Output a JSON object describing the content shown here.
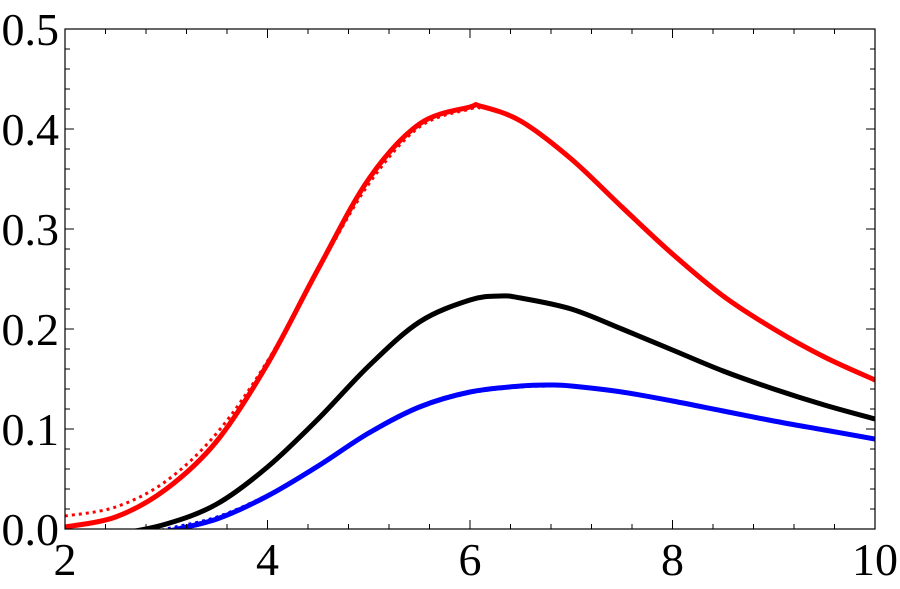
{
  "chart_data": {
    "type": "line",
    "title": "",
    "xlabel": "",
    "ylabel": "",
    "xlim": [
      2,
      10
    ],
    "ylim": [
      0,
      0.5
    ],
    "x_ticks": [
      2,
      4,
      6,
      8,
      10
    ],
    "y_ticks": [
      0.0,
      0.1,
      0.2,
      0.3,
      0.4,
      0.5
    ],
    "x_tick_labels": [
      "2",
      "4",
      "6",
      "8",
      "10"
    ],
    "y_tick_labels": [
      "0.0",
      "0.1",
      "0.2",
      "0.3",
      "0.4",
      "0.5"
    ],
    "grid": false,
    "legend": "none",
    "series": [
      {
        "color": "#ff0000",
        "style": "solid",
        "x": [
          2.0,
          2.5,
          3.0,
          3.5,
          4.0,
          4.5,
          5.0,
          5.5,
          6.0,
          6.1,
          6.5,
          7.0,
          7.5,
          8.0,
          8.5,
          9.0,
          9.5,
          10.0
        ],
        "y": [
          0.002,
          0.012,
          0.04,
          0.088,
          0.165,
          0.26,
          0.35,
          0.405,
          0.422,
          0.423,
          0.408,
          0.37,
          0.322,
          0.275,
          0.233,
          0.2,
          0.172,
          0.149
        ]
      },
      {
        "color": "#ff0000",
        "style": "dotted",
        "x": [
          2.0,
          2.5,
          3.0,
          3.5,
          4.0,
          4.5,
          5.0,
          5.5,
          6.0,
          6.1
        ],
        "y": [
          0.013,
          0.022,
          0.048,
          0.096,
          0.168,
          0.259,
          0.345,
          0.402,
          0.42,
          0.421
        ]
      },
      {
        "color": "#000000",
        "style": "solid",
        "x": [
          2.0,
          2.5,
          3.0,
          3.5,
          4.0,
          4.5,
          5.0,
          5.5,
          6.0,
          6.3,
          6.5,
          7.0,
          7.5,
          8.0,
          8.5,
          9.0,
          9.5,
          10.0
        ],
        "y": [
          -0.01,
          -0.005,
          0.005,
          0.025,
          0.062,
          0.11,
          0.163,
          0.207,
          0.229,
          0.233,
          0.231,
          0.22,
          0.2,
          0.179,
          0.158,
          0.14,
          0.124,
          0.11
        ]
      },
      {
        "color": "#0000ff",
        "style": "solid",
        "x": [
          2.0,
          2.5,
          3.0,
          3.5,
          4.0,
          4.5,
          5.0,
          5.5,
          6.0,
          6.5,
          6.8,
          7.0,
          7.5,
          8.0,
          8.5,
          9.0,
          9.5,
          10.0
        ],
        "y": [
          -0.03,
          -0.02,
          -0.003,
          0.01,
          0.033,
          0.063,
          0.096,
          0.122,
          0.137,
          0.143,
          0.144,
          0.143,
          0.137,
          0.128,
          0.118,
          0.108,
          0.099,
          0.09
        ]
      },
      {
        "color": "#0000ff",
        "style": "dotted",
        "x": [
          2.0,
          2.5,
          3.0,
          3.5,
          4.0,
          4.5,
          5.0,
          5.5,
          6.0,
          6.5,
          6.8
        ],
        "y": [
          -0.02,
          -0.012,
          0.0,
          0.012,
          0.034,
          0.063,
          0.095,
          0.121,
          0.136,
          0.142,
          0.143
        ]
      }
    ]
  }
}
